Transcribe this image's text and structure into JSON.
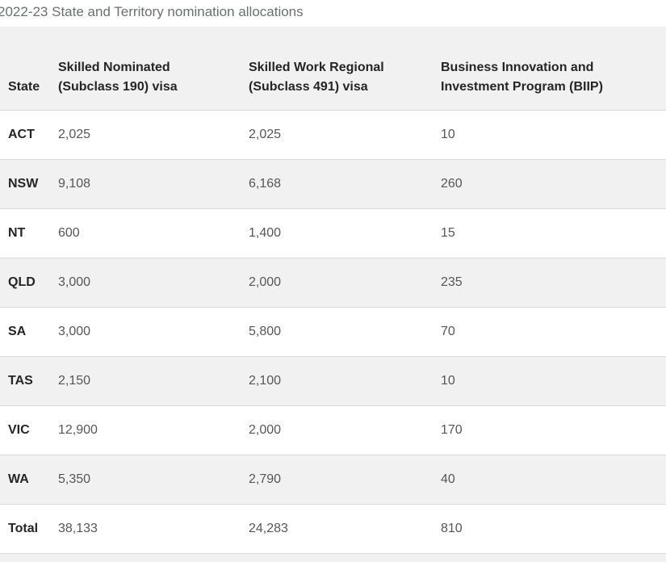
{
  "title": "2022-23 State and Territory nomination allocations",
  "colors": {
    "header_background": "#f1f1f1",
    "stripe_background": "#f1f1f1",
    "row_background": "#ffffff",
    "border": "#d9d9d9",
    "header_text": "#252525",
    "value_text": "#565658",
    "title_text": "#6b6f72"
  },
  "table": {
    "headers": [
      {
        "lines": [
          "State",
          ""
        ]
      },
      {
        "lines": [
          "Skilled Nominated",
          "(Subclass 190) visa"
        ]
      },
      {
        "lines": [
          "Skilled Work Regional",
          "(Subclass 491) visa"
        ]
      },
      {
        "lines": [
          "Business Innovation and",
          "Investment Program (BIIP)"
        ]
      }
    ],
    "rows": [
      {
        "state": "ACT",
        "c190": "2,025",
        "c491": "2,025",
        "biip": "10"
      },
      {
        "state": "NSW",
        "c190": "9,108",
        "c491": "6,168",
        "biip": "260"
      },
      {
        "state": "NT",
        "c190": "600",
        "c491": "1,400",
        "biip": "15"
      },
      {
        "state": "QLD",
        "c190": "3,000",
        "c491": "2,000",
        "biip": "235"
      },
      {
        "state": "SA",
        "c190": "3,000",
        "c491": "5,800",
        "biip": "70"
      },
      {
        "state": "TAS",
        "c190": "2,150",
        "c491": "2,100",
        "biip": "10"
      },
      {
        "state": "VIC",
        "c190": "12,900",
        "c491": "2,000",
        "biip": "170"
      },
      {
        "state": "WA",
        "c190": "5,350",
        "c491": "2,790",
        "biip": "40"
      },
      {
        "state": "Total",
        "c190": "38,133",
        "c491": "24,283",
        "biip": "810"
      }
    ]
  }
}
